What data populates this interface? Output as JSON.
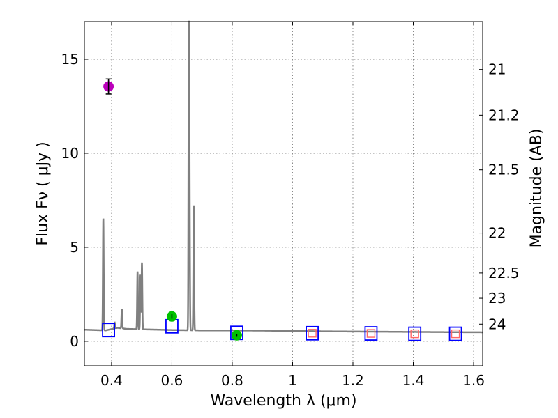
{
  "chart_data": {
    "type": "scatter",
    "xlabel": "Wavelength  λ (μm)",
    "ylabel": "Flux  Fν  ( μJy )",
    "y2label": "Magnitude (AB)",
    "xlim": [
      0.31,
      1.63
    ],
    "ylim": [
      -1.3,
      17.0
    ],
    "grid": true,
    "x_ticks": [
      {
        "value": 0.4,
        "label": "0.4"
      },
      {
        "value": 0.6,
        "label": "0.6"
      },
      {
        "value": 0.8,
        "label": "0.8"
      },
      {
        "value": 1.0,
        "label": "1"
      },
      {
        "value": 1.2,
        "label": "1.2"
      },
      {
        "value": 1.4,
        "label": "1.4"
      },
      {
        "value": 1.6,
        "label": "1.6"
      }
    ],
    "y_ticks": [
      {
        "value": 0,
        "label": "0"
      },
      {
        "value": 5,
        "label": "5"
      },
      {
        "value": 10,
        "label": "10"
      },
      {
        "value": 15,
        "label": "15"
      }
    ],
    "mag_ticks": [
      {
        "value": 21,
        "label": "21"
      },
      {
        "value": 21.2,
        "label": "21.2"
      },
      {
        "value": 21.5,
        "label": "21.5"
      },
      {
        "value": 22,
        "label": "22"
      },
      {
        "value": 22.5,
        "label": "22.5"
      },
      {
        "value": 23,
        "label": "23"
      },
      {
        "value": 24,
        "label": "24"
      }
    ],
    "colors": {
      "spectrum": "#808080",
      "model_box": "#0000ff",
      "upper_box": "#ff6666",
      "measured_green": "#00c000",
      "measured_magenta": "#bb00bb",
      "grid": "#888888"
    },
    "spectrum": {
      "name": "model spectrum",
      "continuum": [
        [
          0.31,
          0.62
        ],
        [
          0.38,
          0.58
        ],
        [
          0.42,
          0.72
        ],
        [
          0.45,
          0.66
        ],
        [
          0.5,
          0.64
        ],
        [
          0.6,
          0.6
        ],
        [
          0.7,
          0.58
        ],
        [
          0.8,
          0.58
        ],
        [
          0.9,
          0.57
        ],
        [
          1.0,
          0.55
        ],
        [
          1.1,
          0.53
        ],
        [
          1.2,
          0.52
        ],
        [
          1.3,
          0.51
        ],
        [
          1.4,
          0.5
        ],
        [
          1.5,
          0.49
        ],
        [
          1.63,
          0.48
        ]
      ],
      "lines": [
        {
          "x": 0.3727,
          "peak": 6.55
        },
        {
          "x": 0.4102,
          "peak": 1.0
        },
        {
          "x": 0.434,
          "peak": 1.72
        },
        {
          "x": 0.4861,
          "peak": 3.72
        },
        {
          "x": 0.4959,
          "peak": 3.55
        },
        {
          "x": 0.5007,
          "peak": 4.2
        },
        {
          "x": 0.6563,
          "peak": 18.0
        },
        {
          "x": 0.6584,
          "peak": 6.9
        },
        {
          "x": 0.6725,
          "peak": 7.25
        }
      ]
    },
    "model_photometry": [
      {
        "x": 0.39,
        "y": 0.6
      },
      {
        "x": 0.6,
        "y": 0.8
      },
      {
        "x": 0.815,
        "y": 0.45
      },
      {
        "x": 1.065,
        "y": 0.43
      },
      {
        "x": 1.26,
        "y": 0.42
      },
      {
        "x": 1.405,
        "y": 0.4
      },
      {
        "x": 1.54,
        "y": 0.4
      }
    ],
    "upper_limits": [
      {
        "x": 1.065,
        "y": 0.43
      },
      {
        "x": 1.26,
        "y": 0.42
      },
      {
        "x": 1.405,
        "y": 0.4
      },
      {
        "x": 1.54,
        "y": 0.4
      }
    ],
    "measurements": [
      {
        "x": 0.39,
        "y": 13.55,
        "err": 0.4,
        "color": "magenta"
      },
      {
        "x": 0.6,
        "y": 1.32,
        "err": 0.12,
        "color": "green"
      },
      {
        "x": 0.815,
        "y": 0.32,
        "err": 0.08,
        "color": "green"
      }
    ]
  }
}
